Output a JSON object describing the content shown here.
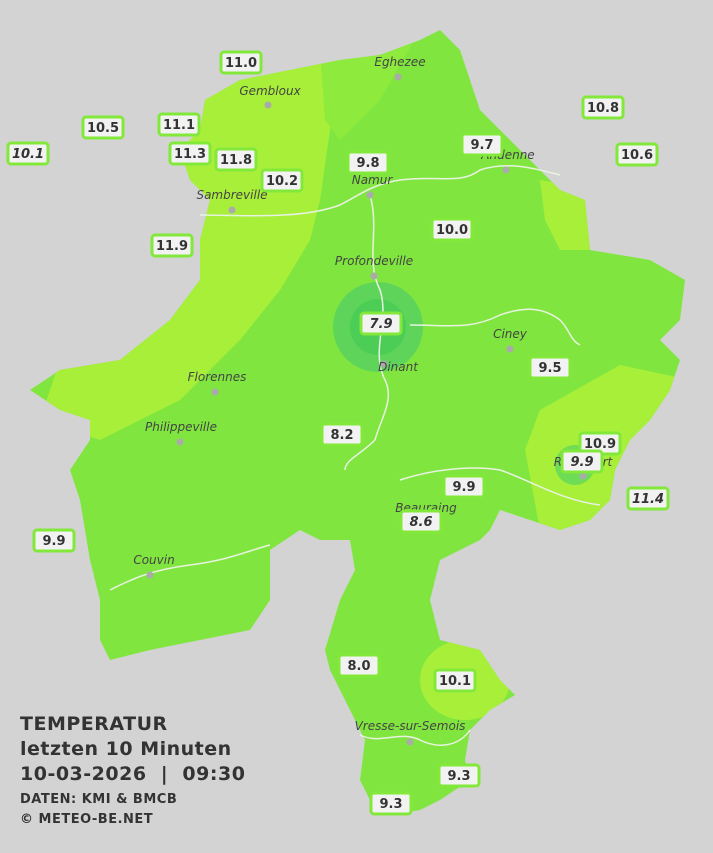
{
  "legend": {
    "title": "TEMPERATUR",
    "period": "letzten 10 Minuten",
    "datetime": "10-03-2026  |  09:30",
    "source": "DATEN: KMI & BMCB",
    "copyright": "© METEO-BE.NET"
  },
  "towns": [
    "Eghezee",
    "Gembloux",
    "Andenne",
    "Namur",
    "Sambreville",
    "Profondeville",
    "Ciney",
    "Dinant",
    "Florennes",
    "Philippeville",
    "Couvin",
    "Beauraing",
    "Rochefort",
    "Vresse-sur-Semois"
  ],
  "stations": [
    {
      "label": "11.0"
    },
    {
      "label": "10.5"
    },
    {
      "label": "10.1",
      "italic": true
    },
    {
      "label": "11.1"
    },
    {
      "label": "11.3"
    },
    {
      "label": "11.8"
    },
    {
      "label": "10.2"
    },
    {
      "label": "9.8"
    },
    {
      "label": "9.7"
    },
    {
      "label": "10.8"
    },
    {
      "label": "10.6"
    },
    {
      "label": "10.0"
    },
    {
      "label": "11.9"
    },
    {
      "label": "7.9",
      "italic": true
    },
    {
      "label": "9.5"
    },
    {
      "label": "8.2"
    },
    {
      "label": "10.9"
    },
    {
      "label": "9.9",
      "italic": true
    },
    {
      "label": "11.4",
      "italic": true
    },
    {
      "label": "9.9"
    },
    {
      "label": "8.6",
      "italic": true
    },
    {
      "label": "9.9"
    },
    {
      "label": "8.0"
    },
    {
      "label": "10.1"
    },
    {
      "label": "9.3"
    },
    {
      "label": "9.3"
    }
  ]
}
